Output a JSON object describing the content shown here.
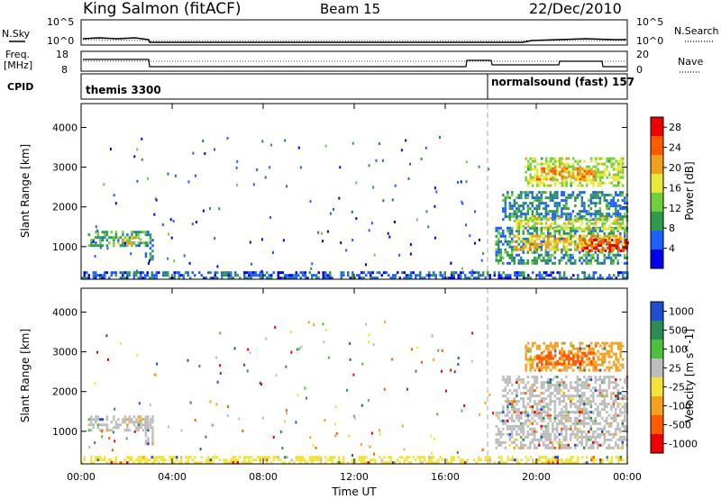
{
  "header": {
    "station": "King Salmon (fitACF)",
    "beam": "Beam 15",
    "date": "22/Dec/2010"
  },
  "strip_labels": {
    "nsky": "N.Sky",
    "nsearch": "N.Search",
    "freq_line1": "Freq.",
    "freq_line2": "[MHz]",
    "nave": "Nave",
    "cpid": "CPID"
  },
  "strip_axes": {
    "noise_ticks": [
      "10^5",
      "10^0"
    ],
    "noise_right_ticks": [
      "10^5",
      "10^0"
    ],
    "freq_ticks": [
      "18",
      "8"
    ],
    "nave_ticks": [
      "20",
      "0"
    ]
  },
  "cpid_segments": [
    {
      "label": "themis 3300",
      "start_hour": 0
    },
    {
      "label": "normalsound (fast) 157",
      "start_hour": 18
    }
  ],
  "chart_data": [
    {
      "type": "heatmap",
      "name": "Power",
      "xlabel": "Time UT",
      "ylabel": "Slant Range [km]",
      "x_ticks": [
        "00:00",
        "04:00",
        "08:00",
        "12:00",
        "16:00",
        "20:00",
        "00:00"
      ],
      "xlim_hours": [
        0,
        24
      ],
      "y_ticks": [
        1000,
        2000,
        3000,
        4000
      ],
      "ylim": [
        180,
        4600
      ],
      "colorbar": {
        "label": "Power [dB]",
        "ticks": [
          4,
          8,
          12,
          16,
          20,
          24,
          28
        ],
        "range": [
          0,
          30
        ],
        "colors": [
          "#0000ee",
          "#1f5fff",
          "#2f9a4a",
          "#6fcf3a",
          "#e8e83a",
          "#f0a020",
          "#ff5a00",
          "#ee0000"
        ]
      },
      "regions": [
        {
          "t0": 0.3,
          "t1": 2.9,
          "r0": 1000,
          "r1": 1400,
          "level": 10
        },
        {
          "t0": 1.6,
          "t1": 2.6,
          "r0": 1050,
          "r1": 1250,
          "level": 18
        },
        {
          "t0": 2.8,
          "t1": 3.1,
          "r0": 700,
          "r1": 1400,
          "level": 8
        },
        {
          "t0": 0.0,
          "t1": 24.0,
          "r0": 200,
          "r1": 380,
          "level": 6
        },
        {
          "t0": 18.2,
          "t1": 24.0,
          "r0": 600,
          "r1": 1500,
          "level": 9
        },
        {
          "t0": 19.0,
          "t1": 24.0,
          "r0": 900,
          "r1": 1300,
          "level": 19
        },
        {
          "t0": 22.0,
          "t1": 24.0,
          "r0": 900,
          "r1": 1200,
          "level": 26
        },
        {
          "t0": 18.5,
          "t1": 24.0,
          "r0": 1700,
          "r1": 2400,
          "level": 8
        },
        {
          "t0": 19.0,
          "t1": 24.0,
          "r0": 1450,
          "r1": 1750,
          "level": 16
        },
        {
          "t0": 19.5,
          "t1": 23.8,
          "r0": 2550,
          "r1": 3250,
          "level": 15
        },
        {
          "t0": 20.0,
          "t1": 22.5,
          "r0": 2700,
          "r1": 3000,
          "level": 21
        }
      ]
    },
    {
      "type": "heatmap",
      "name": "Velocity",
      "xlabel": "Time UT",
      "ylabel": "Slant Range [km]",
      "x_ticks": [
        "00:00",
        "04:00",
        "08:00",
        "12:00",
        "16:00",
        "20:00",
        "00:00"
      ],
      "xlim_hours": [
        0,
        24
      ],
      "y_ticks": [
        1000,
        2000,
        3000,
        4000
      ],
      "ylim": [
        180,
        4600
      ],
      "colorbar": {
        "label": "Velocity [m s^-1]",
        "ticks": [
          "1000",
          "500",
          "100",
          "25",
          "-25",
          "-100",
          "-500",
          "-1000"
        ],
        "colors": [
          "#1f4fcf",
          "#2e8b57",
          "#4fbf3f",
          "#bdbdbd",
          "#f2e23a",
          "#f5a020",
          "#ff5a00",
          "#ee0000"
        ]
      },
      "regions": [
        {
          "t0": 0.3,
          "t1": 2.9,
          "r0": 1000,
          "r1": 1400,
          "level": "25"
        },
        {
          "t0": 2.8,
          "t1": 3.1,
          "r0": 700,
          "r1": 1400,
          "level": "25"
        },
        {
          "t0": 0.0,
          "t1": 24.0,
          "r0": 200,
          "r1": 380,
          "level": "-25"
        },
        {
          "t0": 18.2,
          "t1": 24.0,
          "r0": 600,
          "r1": 1500,
          "level": "25"
        },
        {
          "t0": 18.5,
          "t1": 24.0,
          "r0": 1500,
          "r1": 2400,
          "level": "25"
        },
        {
          "t0": 19.5,
          "t1": 23.8,
          "r0": 2550,
          "r1": 3250,
          "level": "-100"
        },
        {
          "t0": 20.0,
          "t1": 22.5,
          "r0": 2700,
          "r1": 3000,
          "level": "-500"
        }
      ]
    }
  ]
}
